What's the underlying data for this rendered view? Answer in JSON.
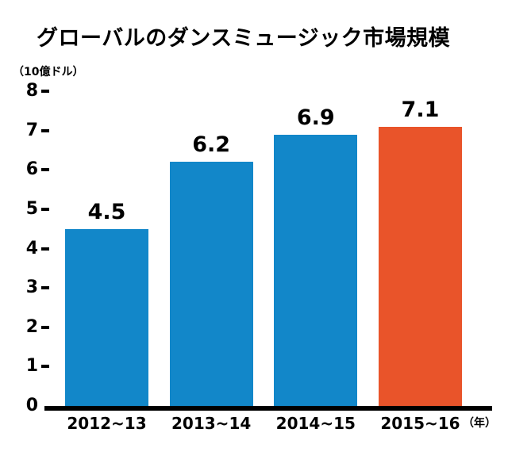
{
  "chart_data": {
    "type": "bar",
    "title": "グローバルのダンスミュージック市場規模",
    "ylabel": "（10億ドル）",
    "xlabel_suffix": "（年）",
    "categories": [
      "2012~13",
      "2013~14",
      "2014~15",
      "2015~16"
    ],
    "values": [
      4.5,
      6.2,
      6.9,
      7.1
    ],
    "value_labels": [
      "4.5",
      "6.2",
      "6.9",
      "7.1"
    ],
    "bar_colors": [
      "#1287c9",
      "#1287c9",
      "#1287c9",
      "#e9542a"
    ],
    "ylim": [
      0,
      8
    ],
    "yticks": [
      0,
      1,
      2,
      3,
      4,
      5,
      6,
      7,
      8
    ],
    "grid": false,
    "legend": "none",
    "axis_color": "#000000",
    "background": "#ffffff",
    "accent_colors": {
      "blue": "#1287c9",
      "orange": "#e9542a"
    }
  }
}
